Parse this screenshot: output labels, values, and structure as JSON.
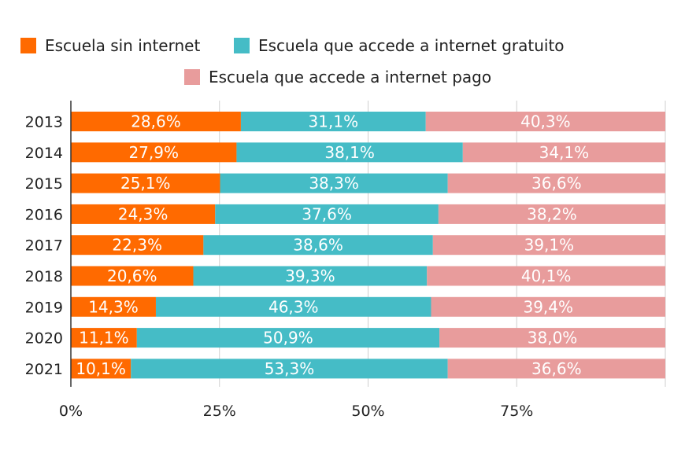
{
  "chart_data": {
    "type": "bar",
    "orientation": "horizontal",
    "stacked": true,
    "categories": [
      "2013",
      "2014",
      "2015",
      "2016",
      "2017",
      "2018",
      "2019",
      "2020",
      "2021"
    ],
    "series": [
      {
        "name": "Escuela sin internet",
        "color": "#ff6a00",
        "values": [
          28.6,
          27.9,
          25.1,
          24.3,
          22.3,
          20.6,
          14.3,
          11.1,
          10.1
        ],
        "labels": [
          "28,6%",
          "27,9%",
          "25,1%",
          "24,3%",
          "22,3%",
          "20,6%",
          "14,3%",
          "11,1%",
          "10,1%"
        ]
      },
      {
        "name": "Escuela que accede a internet gratuito",
        "color": "#45bcc6",
        "values": [
          31.1,
          38.1,
          38.3,
          37.6,
          38.6,
          39.3,
          46.3,
          50.9,
          53.3
        ],
        "labels": [
          "31,1%",
          "38,1%",
          "38,3%",
          "37,6%",
          "38,6%",
          "39,3%",
          "46,3%",
          "50,9%",
          "53,3%"
        ]
      },
      {
        "name": "Escuela que accede a internet pago",
        "color": "#e89c9c",
        "values": [
          40.3,
          34.1,
          36.6,
          38.2,
          39.1,
          40.1,
          39.4,
          38.0,
          36.6
        ],
        "labels": [
          "40,3%",
          "34,1%",
          "36,6%",
          "38,2%",
          "39,1%",
          "40,1%",
          "39,4%",
          "38,0%",
          "36,6%"
        ]
      }
    ],
    "xlim": [
      0,
      100
    ],
    "xticks": [
      0,
      25,
      50,
      75,
      100
    ],
    "xtick_labels": [
      "0%",
      "25%",
      "50%",
      "75%",
      ""
    ],
    "grid": true,
    "legend_position": "top"
  }
}
